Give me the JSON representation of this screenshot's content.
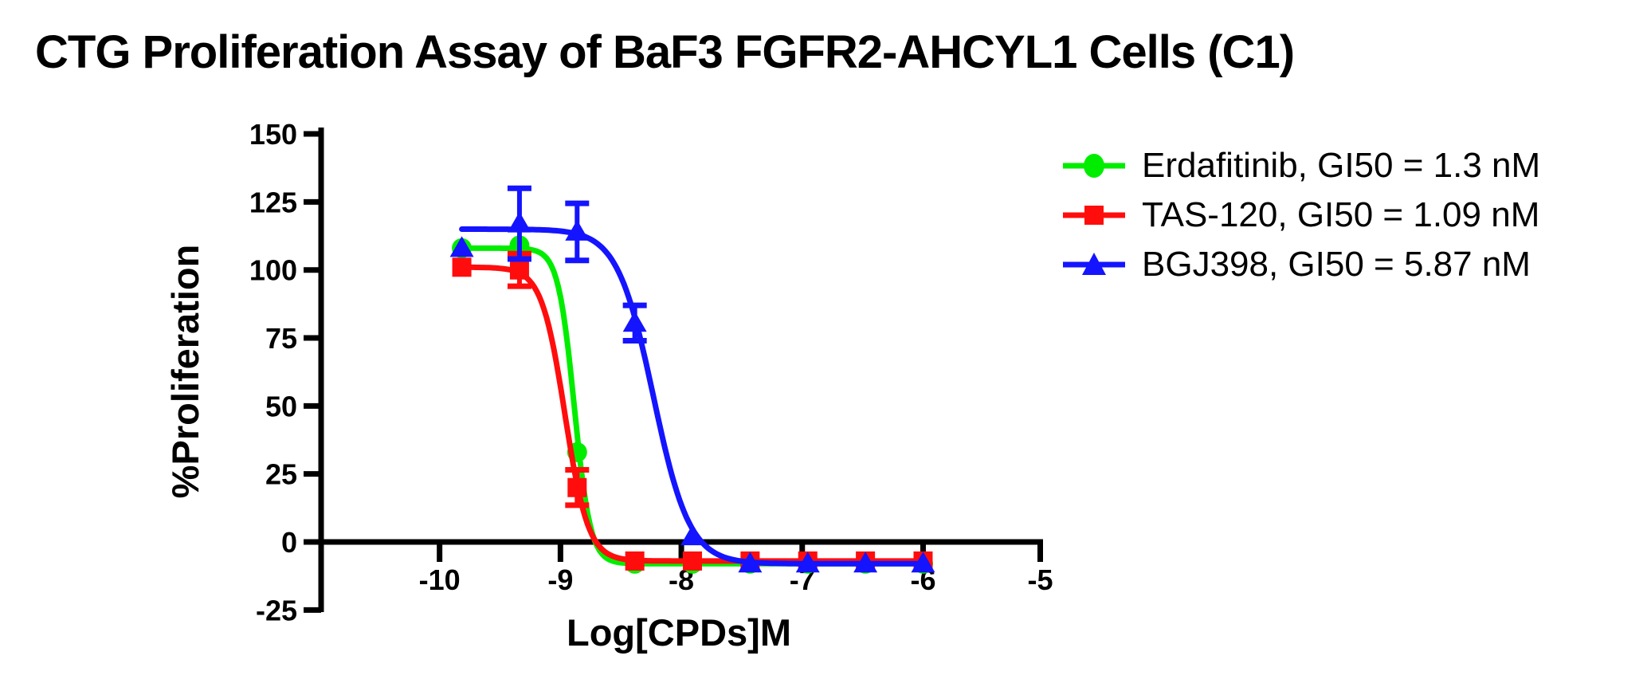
{
  "chart_data": {
    "type": "line",
    "title": "CTG Proliferation Assay of BaF3 FGFR2-AHCYL1 Cells (C1)",
    "xlabel": "Log[CPDs]M",
    "ylabel": "%Proliferation",
    "xlim": [
      -10.98,
      -5
    ],
    "ylim": [
      -25,
      150
    ],
    "x_ticks": [
      -10,
      -9,
      -8,
      -7,
      -6,
      -5
    ],
    "y_ticks": [
      150,
      125,
      100,
      75,
      50,
      25,
      0,
      -25
    ],
    "grid": false,
    "legend_position": "right",
    "axis_color": "#000000",
    "x": [
      -9.816,
      -9.339,
      -8.862,
      -8.385,
      -7.908,
      -7.431,
      -6.954,
      -6.477,
      -6.0
    ],
    "series": [
      {
        "name": "Erdafitinib, GI50 = 1.3 nM",
        "gi50_nm": 1.3,
        "color": "#00ed00",
        "marker": "circle",
        "y": [
          108,
          109,
          33,
          -8,
          -8,
          -8,
          -8,
          -8,
          -8
        ],
        "y_err": [
          0,
          0,
          0,
          0,
          0,
          0,
          0,
          0,
          0
        ],
        "fit": {
          "top": 108,
          "bottom": -8,
          "log_ic50": -8.886,
          "hill": 6.5
        }
      },
      {
        "name": "TAS-120, GI50 = 1.09 nM",
        "gi50_nm": 1.09,
        "color": "#ff0d0d",
        "marker": "square",
        "y": [
          101,
          100,
          20,
          -7,
          -7,
          -7,
          -7,
          -7,
          -7
        ],
        "y_err": [
          0,
          6,
          6.5,
          0,
          0,
          0,
          0,
          0,
          0
        ],
        "fit": {
          "top": 101,
          "bottom": -7,
          "log_ic50": -8.963,
          "hill": 4.5
        }
      },
      {
        "name": "BGJ398, GI50 = 5.87 nM",
        "gi50_nm": 5.87,
        "color": "#1414ff",
        "marker": "triangle-up",
        "y": [
          108,
          117,
          114,
          80.5,
          2,
          -8,
          -8,
          -8,
          -8
        ],
        "y_err": [
          0,
          13,
          10.5,
          6.5,
          0,
          0,
          0,
          0,
          0
        ],
        "fit": {
          "top": 115,
          "bottom": -8,
          "log_ic50": -8.231,
          "hill": 2.9
        }
      }
    ]
  }
}
